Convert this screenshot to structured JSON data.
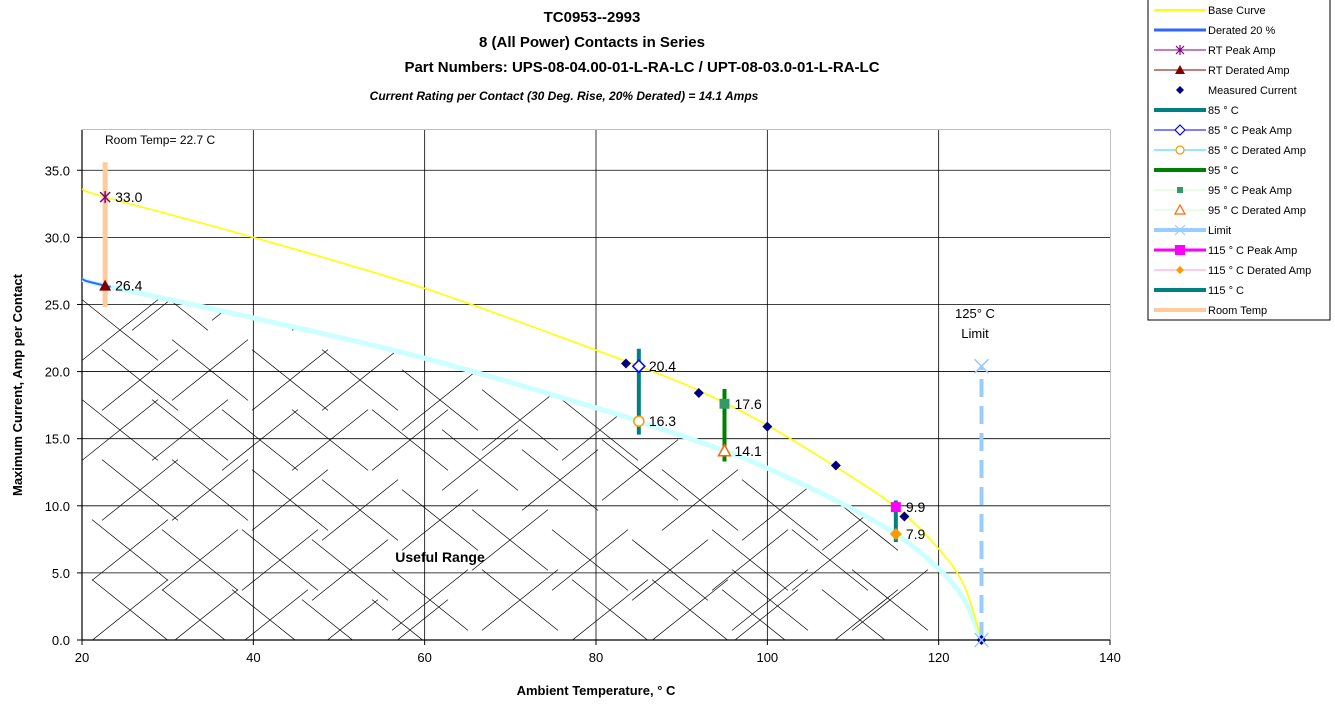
{
  "chart_data": {
    "type": "line",
    "title_lines": [
      "TC0953--2993",
      "8 (All Power) Contacts in Series",
      "Part Numbers: UPS-08-04.00-01-L-RA-LC / UPT-08-03.0-01-L-RA-LC"
    ],
    "subtitle": "Current Rating per Contact (30 Deg. Rise, 20% Derated)  = 14.1 Amps",
    "xlabel": "Ambient Temperature,  ° C",
    "ylabel": "Maximum Current, Amp per Contact",
    "xlim": [
      20,
      140
    ],
    "ylim": [
      0,
      38
    ],
    "x_ticks": [
      20,
      40,
      60,
      80,
      100,
      120,
      140
    ],
    "x_tick_labels": [
      "20",
      "40",
      "60",
      "80",
      "100",
      "120",
      "140"
    ],
    "y_ticks": [
      0,
      5,
      10,
      15,
      20,
      25,
      30,
      35
    ],
    "y_tick_labels": [
      "0.0",
      "5.0",
      "10.0",
      "15.0",
      "20.0",
      "25.0",
      "30.0",
      "35.0"
    ],
    "grid": true,
    "legend_position": "top-right",
    "annotations": {
      "room_temp": "Room Temp= 22.7 C",
      "limit_line1": "125° C",
      "limit_line2": "Limit",
      "useful_range": "Useful Range"
    },
    "base_curve": {
      "x": [
        20,
        22.7,
        40,
        60,
        80,
        85,
        92,
        100,
        108,
        115,
        120,
        123,
        125
      ],
      "y": [
        33.6,
        33.0,
        30.0,
        26.2,
        21.6,
        20.4,
        18.6,
        16.0,
        12.9,
        9.9,
        6.8,
        4.0,
        0
      ]
    },
    "derated_curve": {
      "x": [
        20,
        22.7,
        40,
        60,
        80,
        85,
        95,
        100,
        108,
        115,
        120,
        123,
        125
      ],
      "y": [
        26.9,
        26.4,
        24.0,
        21.0,
        17.3,
        16.3,
        14.1,
        12.8,
        10.4,
        7.9,
        5.3,
        3.0,
        0
      ]
    },
    "series": [
      {
        "name": "Base Curve",
        "color": "#ffff00"
      },
      {
        "name": "Derated 20 %",
        "color": "#3366ff"
      },
      {
        "name": "RT Peak Amp",
        "color": "#800080",
        "points": [
          {
            "x": 22.7,
            "y": 33.0,
            "label": "33.0"
          }
        ]
      },
      {
        "name": "RT Derated Amp",
        "color": "#800000",
        "points": [
          {
            "x": 22.7,
            "y": 26.4,
            "label": "26.4"
          }
        ]
      },
      {
        "name": "Measured Current",
        "color": "#000080",
        "points": [
          {
            "x": 83.5,
            "y": 20.6
          },
          {
            "x": 92,
            "y": 18.4
          },
          {
            "x": 100,
            "y": 15.9
          },
          {
            "x": 108,
            "y": 13.0
          },
          {
            "x": 116,
            "y": 9.2
          },
          {
            "x": 125,
            "y": 0
          }
        ]
      },
      {
        "name": "85  ° C",
        "color": "#008080",
        "x": 85,
        "y_range": [
          15.3,
          21.7
        ]
      },
      {
        "name": "85  ° C Peak Amp",
        "color": "#0000ff",
        "points": [
          {
            "x": 85,
            "y": 20.4,
            "label": "20.4"
          }
        ]
      },
      {
        "name": "85  ° C Derated Amp",
        "color": "#ff9900",
        "points": [
          {
            "x": 85,
            "y": 16.3,
            "label": "16.3"
          }
        ]
      },
      {
        "name": "95  ° C",
        "color": "#008000",
        "x": 95,
        "y_range": [
          13.3,
          18.7
        ]
      },
      {
        "name": "95  ° C Peak Amp",
        "color": "#339966",
        "points": [
          {
            "x": 95,
            "y": 17.6,
            "label": "17.6"
          }
        ]
      },
      {
        "name": "95  ° C Derated Amp",
        "color": "#ff6600",
        "points": [
          {
            "x": 95,
            "y": 14.1,
            "label": "14.1"
          }
        ]
      },
      {
        "name": "Limit",
        "color": "#99ccff",
        "x": 125,
        "y_range": [
          0,
          20.4
        ]
      },
      {
        "name": "115  ° C Peak Amp",
        "color": "#ff00ff",
        "points": [
          {
            "x": 115,
            "y": 9.9,
            "label": "9.9"
          }
        ]
      },
      {
        "name": "115  ° C Derated Amp",
        "color": "#ff9900",
        "points": [
          {
            "x": 115,
            "y": 7.9,
            "label": "7.9"
          }
        ]
      },
      {
        "name": "115  ° C",
        "color": "#008080",
        "x": 115,
        "y_range": [
          7.3,
          10.4
        ]
      },
      {
        "name": "Room Temp",
        "color": "#ffcc99",
        "x": 22.7,
        "y_range": [
          24.8,
          35.6
        ]
      }
    ]
  }
}
